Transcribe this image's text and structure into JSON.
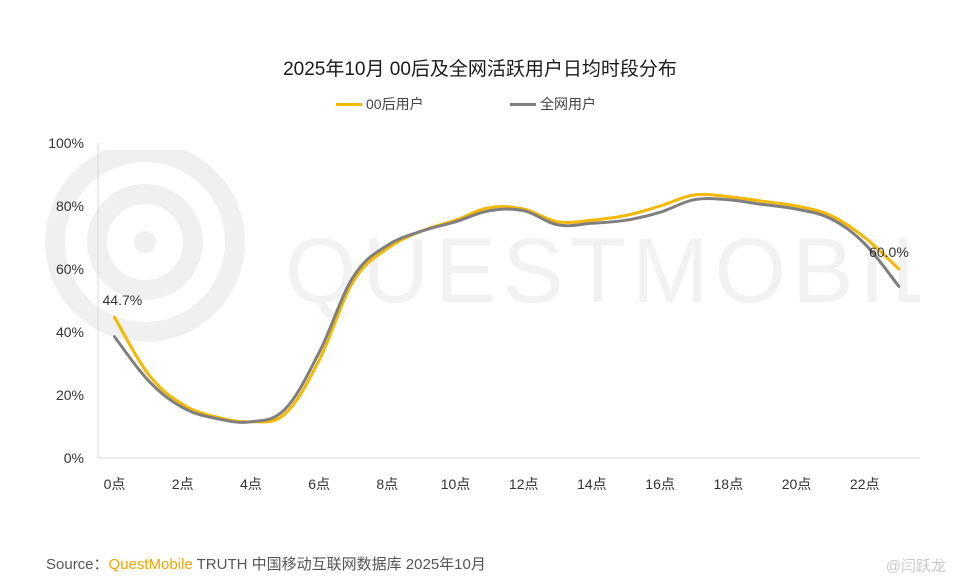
{
  "chart_data": {
    "type": "line",
    "title": "2025年10月 00后及全网活跃用户日均时段分布",
    "x": [
      "0点",
      "1点",
      "2点",
      "3点",
      "4点",
      "5点",
      "6点",
      "7点",
      "8点",
      "9点",
      "10点",
      "11点",
      "12点",
      "13点",
      "14点",
      "15点",
      "16点",
      "17点",
      "18点",
      "19点",
      "20点",
      "21点",
      "22点",
      "23点"
    ],
    "x_tick_labels": [
      "0点",
      "2点",
      "4点",
      "6点",
      "8点",
      "10点",
      "12点",
      "14点",
      "16点",
      "18点",
      "20点",
      "22点"
    ],
    "y_tick_labels": [
      "0%",
      "20%",
      "40%",
      "60%",
      "80%",
      "100%"
    ],
    "ylim": [
      0,
      100
    ],
    "grid": false,
    "legend_position": "top-center",
    "series": [
      {
        "name": "00后用户",
        "color": "#f5b800",
        "values": [
          44.7,
          26.5,
          17.0,
          13.0,
          11.5,
          14.0,
          31.0,
          56.0,
          66.5,
          72.0,
          75.5,
          79.5,
          79.0,
          75.0,
          75.5,
          77.0,
          80.0,
          83.5,
          83.0,
          81.5,
          80.0,
          77.0,
          70.0,
          60.0
        ]
      },
      {
        "name": "全网用户",
        "color": "#7f7f7f",
        "values": [
          38.5,
          24.5,
          16.0,
          12.5,
          11.5,
          15.5,
          33.5,
          57.5,
          67.5,
          72.0,
          75.0,
          78.5,
          78.5,
          74.0,
          74.5,
          75.5,
          78.0,
          82.0,
          82.0,
          80.5,
          79.0,
          76.0,
          68.0,
          54.5
        ]
      }
    ],
    "data_labels": [
      {
        "series": "00后用户",
        "x": "0点",
        "text": "44.7%"
      },
      {
        "series": "00后用户",
        "x": "23点",
        "text": "60.0%"
      }
    ]
  },
  "watermark": "QUESTMOBILE",
  "source": {
    "prefix": "Source：",
    "brand": "QuestMobile",
    "rest": " TRUTH 中国移动互联网数据库 2025年10月"
  },
  "weibo_mark": "@闫跃龙"
}
